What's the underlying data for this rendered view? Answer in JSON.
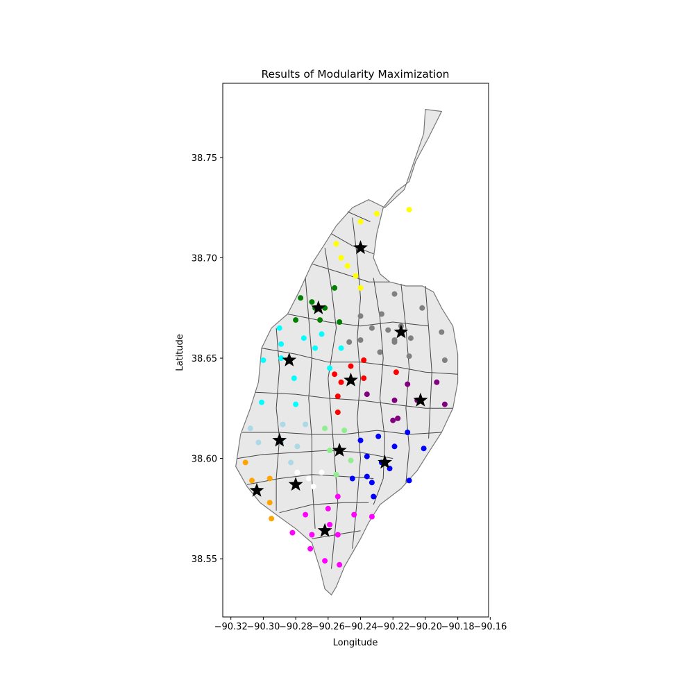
{
  "chart_data": {
    "type": "scatter",
    "title": "Results of Modularity Maximization",
    "xlabel": "Longitude",
    "ylabel": "Latitude",
    "xlim": [
      -90.325,
      -90.161
    ],
    "ylim": [
      38.521,
      38.787
    ],
    "x_ticks": [
      -90.32,
      -90.3,
      -90.28,
      -90.26,
      -90.24,
      -90.22,
      -90.2,
      -90.18,
      -90.16
    ],
    "x_tick_labels": [
      "−90.32",
      "−90.30",
      "−90.28",
      "−90.26",
      "−90.24",
      "−90.22",
      "−90.20",
      "−90.18",
      "−90.16"
    ],
    "y_ticks": [
      38.55,
      38.6,
      38.65,
      38.7,
      38.75
    ],
    "y_tick_labels": [
      "38.55",
      "38.60",
      "38.65",
      "38.70",
      "38.75"
    ],
    "grid": false,
    "legend": "none",
    "region_fill": "#e8e8e8",
    "region_stroke": "#444444",
    "city_outline": [
      [
        -90.2,
        38.774
      ],
      [
        -90.19,
        38.773
      ],
      [
        -90.198,
        38.76
      ],
      [
        -90.206,
        38.748
      ],
      [
        -90.21,
        38.738
      ],
      [
        -90.218,
        38.733
      ],
      [
        -90.226,
        38.725
      ],
      [
        -90.23,
        38.712
      ],
      [
        -90.232,
        38.7
      ],
      [
        -90.228,
        38.692
      ],
      [
        -90.222,
        38.688
      ],
      [
        -90.212,
        38.686
      ],
      [
        -90.202,
        38.686
      ],
      [
        -90.195,
        38.683
      ],
      [
        -90.19,
        38.675
      ],
      [
        -90.183,
        38.666
      ],
      [
        -90.18,
        38.652
      ],
      [
        -90.18,
        38.638
      ],
      [
        -90.183,
        38.625
      ],
      [
        -90.19,
        38.613
      ],
      [
        -90.198,
        38.603
      ],
      [
        -90.205,
        38.594
      ],
      [
        -90.215,
        38.585
      ],
      [
        -90.228,
        38.577
      ],
      [
        -90.235,
        38.568
      ],
      [
        -90.24,
        38.56
      ],
      [
        -90.25,
        38.546
      ],
      [
        -90.255,
        38.536
      ],
      [
        -90.258,
        38.532
      ],
      [
        -90.262,
        38.535
      ],
      [
        -90.265,
        38.545
      ],
      [
        -90.27,
        38.558
      ],
      [
        -90.28,
        38.565
      ],
      [
        -90.292,
        38.572
      ],
      [
        -90.302,
        38.578
      ],
      [
        -90.31,
        38.586
      ],
      [
        -90.317,
        38.596
      ],
      [
        -90.314,
        38.612
      ],
      [
        -90.308,
        38.625
      ],
      [
        -90.303,
        38.638
      ],
      [
        -90.301,
        38.655
      ],
      [
        -90.295,
        38.665
      ],
      [
        -90.285,
        38.672
      ],
      [
        -90.278,
        38.683
      ],
      [
        -90.27,
        38.697
      ],
      [
        -90.262,
        38.707
      ],
      [
        -90.255,
        38.716
      ],
      [
        -90.245,
        38.725
      ],
      [
        -90.235,
        38.729
      ],
      [
        -90.225,
        38.725
      ],
      [
        -90.213,
        38.734
      ],
      [
        -90.207,
        38.748
      ],
      [
        -90.201,
        38.762
      ]
    ],
    "boundaries": [
      [
        [
          -90.301,
          38.655
        ],
        [
          -90.28,
          38.652
        ],
        [
          -90.26,
          38.648
        ]
      ],
      [
        [
          -90.26,
          38.648
        ],
        [
          -90.24,
          38.648
        ],
        [
          -90.22,
          38.646
        ],
        [
          -90.2,
          38.643
        ],
        [
          -90.18,
          38.642
        ]
      ],
      [
        [
          -90.305,
          38.633
        ],
        [
          -90.28,
          38.632
        ],
        [
          -90.26,
          38.63
        ],
        [
          -90.24,
          38.629
        ],
        [
          -90.22,
          38.627
        ],
        [
          -90.2,
          38.625
        ],
        [
          -90.183,
          38.625
        ]
      ],
      [
        [
          -90.313,
          38.613
        ],
        [
          -90.29,
          38.613
        ],
        [
          -90.27,
          38.612
        ],
        [
          -90.25,
          38.612
        ],
        [
          -90.23,
          38.614
        ],
        [
          -90.21,
          38.612
        ],
        [
          -90.19,
          38.613
        ]
      ],
      [
        [
          -90.316,
          38.6
        ],
        [
          -90.3,
          38.602
        ],
        [
          -90.28,
          38.603
        ],
        [
          -90.26,
          38.604
        ],
        [
          -90.24,
          38.603
        ],
        [
          -90.22,
          38.6
        ]
      ],
      [
        [
          -90.31,
          38.587
        ],
        [
          -90.29,
          38.59
        ],
        [
          -90.27,
          38.592
        ],
        [
          -90.25,
          38.591
        ],
        [
          -90.232,
          38.59
        ]
      ],
      [
        [
          -90.29,
          38.573
        ],
        [
          -90.27,
          38.577
        ],
        [
          -90.25,
          38.578
        ],
        [
          -90.235,
          38.578
        ]
      ],
      [
        [
          -90.27,
          38.56
        ],
        [
          -90.255,
          38.562
        ],
        [
          -90.24,
          38.564
        ]
      ],
      [
        [
          -90.285,
          38.672
        ],
        [
          -90.26,
          38.668
        ],
        [
          -90.24,
          38.666
        ],
        [
          -90.22,
          38.668
        ],
        [
          -90.198,
          38.666
        ]
      ],
      [
        [
          -90.27,
          38.697
        ],
        [
          -90.25,
          38.692
        ],
        [
          -90.235,
          38.688
        ],
        [
          -90.222,
          38.688
        ]
      ],
      [
        [
          -90.258,
          38.712
        ],
        [
          -90.245,
          38.706
        ],
        [
          -90.232,
          38.702
        ]
      ],
      [
        [
          -90.248,
          38.723
        ],
        [
          -90.234,
          38.718
        ]
      ],
      [
        [
          -90.292,
          38.665
        ],
        [
          -90.29,
          38.645
        ],
        [
          -90.292,
          38.625
        ],
        [
          -90.29,
          38.61
        ],
        [
          -90.292,
          38.59
        ],
        [
          -90.292,
          38.574
        ]
      ],
      [
        [
          -90.274,
          38.69
        ],
        [
          -90.272,
          38.67
        ],
        [
          -90.27,
          38.65
        ],
        [
          -90.272,
          38.63
        ],
        [
          -90.27,
          38.61
        ],
        [
          -90.27,
          38.59
        ],
        [
          -90.268,
          38.565
        ]
      ],
      [
        [
          -90.262,
          38.705
        ],
        [
          -90.258,
          38.685
        ],
        [
          -90.255,
          38.665
        ],
        [
          -90.26,
          38.64
        ],
        [
          -90.258,
          38.62
        ],
        [
          -90.256,
          38.6
        ],
        [
          -90.254,
          38.578
        ],
        [
          -90.258,
          38.545
        ]
      ],
      [
        [
          -90.245,
          38.72
        ],
        [
          -90.242,
          38.7
        ],
        [
          -90.24,
          38.68
        ],
        [
          -90.242,
          38.66
        ],
        [
          -90.24,
          38.64
        ],
        [
          -90.242,
          38.62
        ],
        [
          -90.24,
          38.6
        ],
        [
          -90.242,
          38.58
        ],
        [
          -90.245,
          38.555
        ]
      ],
      [
        [
          -90.232,
          38.69
        ],
        [
          -90.228,
          38.67
        ],
        [
          -90.226,
          38.65
        ],
        [
          -90.228,
          38.63
        ],
        [
          -90.225,
          38.61
        ],
        [
          -90.226,
          38.59
        ],
        [
          -90.232,
          38.577
        ]
      ],
      [
        [
          -90.215,
          38.687
        ],
        [
          -90.212,
          38.665
        ],
        [
          -90.21,
          38.645
        ],
        [
          -90.212,
          38.625
        ],
        [
          -90.21,
          38.605
        ],
        [
          -90.212,
          38.588
        ]
      ],
      [
        [
          -90.2,
          38.686
        ],
        [
          -90.198,
          38.665
        ],
        [
          -90.196,
          38.643
        ],
        [
          -90.198,
          38.61
        ]
      ]
    ],
    "series": [
      {
        "color": "#ffff00",
        "x": [
          -90.23,
          -90.24,
          -90.21,
          -90.255,
          -90.252,
          -90.248,
          -90.243,
          -90.24
        ],
        "y": [
          38.722,
          38.718,
          38.724,
          38.707,
          38.7,
          38.696,
          38.691,
          38.685
        ]
      },
      {
        "color": "#008000",
        "x": [
          -90.256,
          -90.277,
          -90.27,
          -90.262,
          -90.268,
          -90.28,
          -90.265,
          -90.253
        ],
        "y": [
          38.685,
          38.68,
          38.678,
          38.675,
          38.675,
          38.669,
          38.669,
          38.668
        ]
      },
      {
        "color": "#808080",
        "x": [
          -90.219,
          -90.202,
          -90.24,
          -90.227,
          -90.215,
          -90.233,
          -90.223,
          -90.219,
          -90.209,
          -90.19,
          -90.247,
          -90.24,
          -90.219,
          -90.228,
          -90.21,
          -90.188
        ],
        "y": [
          38.682,
          38.675,
          38.671,
          38.672,
          38.666,
          38.665,
          38.664,
          38.659,
          38.66,
          38.663,
          38.658,
          38.659,
          38.658,
          38.653,
          38.651,
          38.649
        ]
      },
      {
        "color": "#00ffff",
        "x": [
          -90.29,
          -90.275,
          -90.264,
          -90.289,
          -90.268,
          -90.252,
          -90.3,
          -90.289,
          -90.259,
          -90.281,
          -90.301,
          -90.28
        ],
        "y": [
          38.665,
          38.66,
          38.662,
          38.657,
          38.655,
          38.655,
          38.649,
          38.65,
          38.645,
          38.64,
          38.628,
          38.627
        ]
      },
      {
        "color": "#ff0000",
        "x": [
          -90.238,
          -90.246,
          -90.218,
          -90.256,
          -90.238,
          -90.252,
          -90.254,
          -90.254
        ],
        "y": [
          38.649,
          38.646,
          38.643,
          38.642,
          38.64,
          38.638,
          38.631,
          38.623
        ]
      },
      {
        "color": "#800080",
        "x": [
          -90.211,
          -90.193,
          -90.236,
          -90.219,
          -90.205,
          -90.188,
          -90.217,
          -90.22
        ],
        "y": [
          38.637,
          38.638,
          38.632,
          38.629,
          38.629,
          38.627,
          38.62,
          38.619
        ]
      },
      {
        "color": "#add8e6",
        "x": [
          -90.308,
          -90.288,
          -90.274,
          -90.289,
          -90.279,
          -90.303,
          -90.283
        ],
        "y": [
          38.615,
          38.617,
          38.617,
          38.608,
          38.606,
          38.608,
          38.598
        ]
      },
      {
        "color": "#90ee90",
        "x": [
          -90.262,
          -90.25,
          -90.259,
          -90.246,
          -90.255
        ],
        "y": [
          38.615,
          38.614,
          38.604,
          38.599,
          38.592
        ]
      },
      {
        "color": "#0000ff",
        "x": [
          -90.229,
          -90.211,
          -90.24,
          -90.219,
          -90.201,
          -90.236,
          -90.227,
          -90.222,
          -90.245,
          -90.236,
          -90.233,
          -90.21,
          -90.232
        ],
        "y": [
          38.611,
          38.613,
          38.609,
          38.606,
          38.605,
          38.601,
          38.598,
          38.595,
          38.59,
          38.591,
          38.588,
          38.589,
          38.581
        ]
      },
      {
        "color": "#ffa500",
        "x": [
          -90.311,
          -90.296,
          -90.307,
          -90.296,
          -90.295
        ],
        "y": [
          38.598,
          38.59,
          38.589,
          38.578,
          38.57
        ]
      },
      {
        "color": "#ffffff",
        "x": [
          -90.279,
          -90.272,
          -90.264,
          -90.28,
          -90.269
        ],
        "y": [
          38.593,
          38.59,
          38.593,
          38.586,
          38.586
        ]
      },
      {
        "color": "#ff00ff",
        "x": [
          -90.254,
          -90.26,
          -90.274,
          -90.244,
          -90.233,
          -90.259,
          -90.282,
          -90.27,
          -90.254,
          -90.271,
          -90.262,
          -90.253
        ],
        "y": [
          38.581,
          38.575,
          38.572,
          38.572,
          38.571,
          38.567,
          38.563,
          38.562,
          38.562,
          38.555,
          38.549,
          38.547
        ]
      }
    ],
    "centers": {
      "marker": "star",
      "color": "#000000",
      "x": [
        -90.24,
        -90.266,
        -90.215,
        -90.284,
        -90.246,
        -90.203,
        -90.29,
        -90.253,
        -90.225,
        -90.304,
        -90.28,
        -90.262
      ],
      "y": [
        38.705,
        38.675,
        38.663,
        38.649,
        38.639,
        38.629,
        38.609,
        38.604,
        38.598,
        38.584,
        38.587,
        38.564
      ]
    }
  }
}
